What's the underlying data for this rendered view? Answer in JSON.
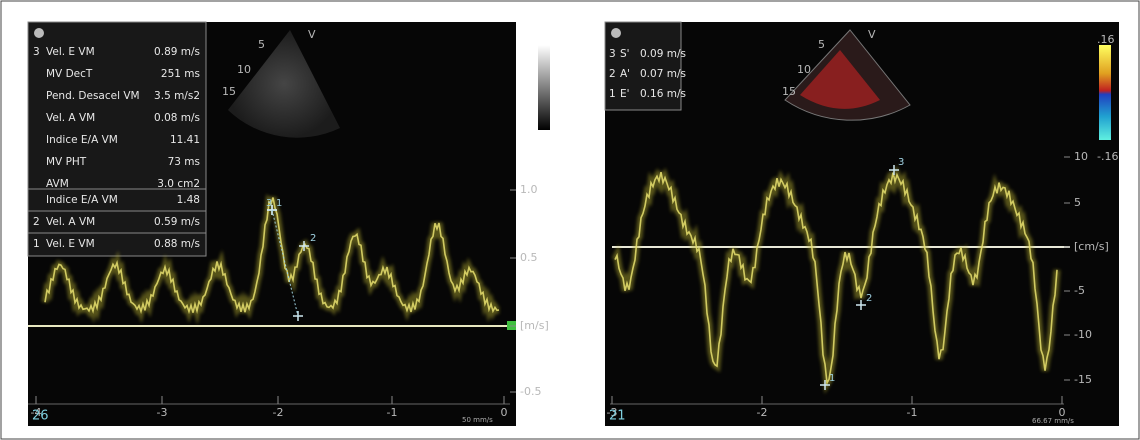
{
  "left_panel": {
    "measurements": [
      {
        "num": "3",
        "label": "Vel. E VM",
        "value": "0.89 m/s"
      },
      {
        "label": "MV DecT",
        "value": "251 ms"
      },
      {
        "label": "Pend. Desacel VM",
        "value": "3.5 m/s2"
      },
      {
        "label": "Vel. A VM",
        "value": "0.08 m/s"
      },
      {
        "label": "Indice E/A VM",
        "value": "11.41"
      },
      {
        "label": "MV PHT",
        "value": "73 ms"
      },
      {
        "label": "AVM",
        "value": "3.0 cm2"
      }
    ],
    "results": [
      {
        "label": "Indice E/A VM",
        "value": "1.48"
      },
      {
        "num": "2",
        "label": "Vel. A VM",
        "value": "0.59 m/s"
      },
      {
        "num": "1",
        "label": "Vel. E VM",
        "value": "0.88 m/s"
      }
    ],
    "probe_labels": [
      "V",
      "5",
      "10",
      "15"
    ],
    "markers": [
      "3",
      "1",
      "2"
    ],
    "y_axis": [
      "1.0",
      "0.5",
      "[m/s]",
      "-0.5"
    ],
    "x_axis": [
      "-4",
      "-3",
      "-2",
      "-1",
      "0"
    ],
    "depth": "26",
    "sweep": "50 mm/s"
  },
  "right_panel": {
    "measurements": [
      {
        "num": "3",
        "label": "S'",
        "value": "0.09 m/s"
      },
      {
        "num": "2",
        "label": "A'",
        "value": "0.07 m/s"
      },
      {
        "num": "1",
        "label": "E'",
        "value": "0.16 m/s"
      }
    ],
    "probe_labels": [
      "V",
      "5",
      "10",
      "15"
    ],
    "color_scale": [
      ".16",
      "-.16"
    ],
    "markers": [
      "3",
      "2",
      "1"
    ],
    "y_axis": [
      "10",
      "5",
      "[cm/s]",
      "-5",
      "-10",
      "-15"
    ],
    "x_axis": [
      "-3",
      "-2",
      "-1",
      "0"
    ],
    "depth": "21",
    "sweep": "66.67 mm/s"
  }
}
